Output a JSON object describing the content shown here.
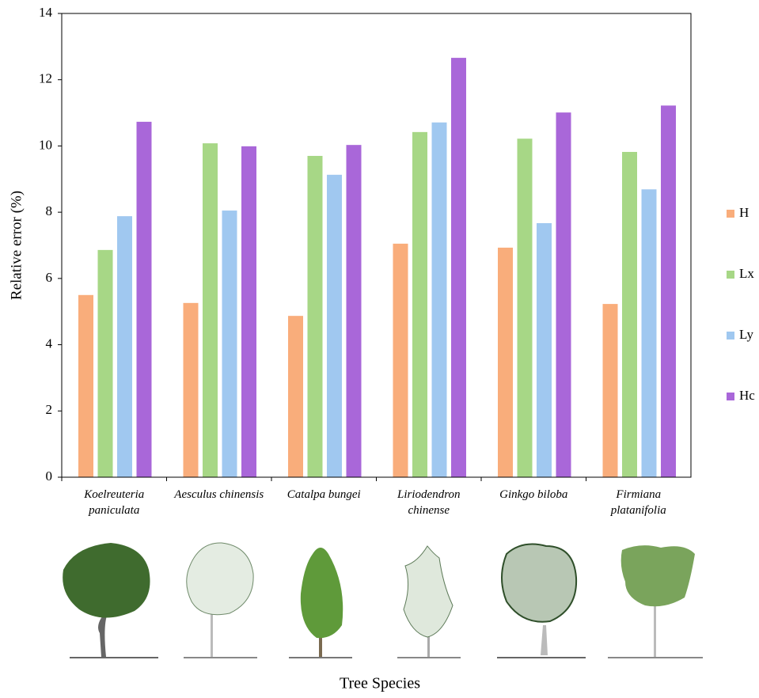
{
  "chart_data": {
    "type": "bar",
    "y_label": "Relative error (%)",
    "x_label": "Tree Species",
    "categories": [
      "Koelreuteria paniculata",
      "Aesculus chinensis",
      "Catalpa bungei",
      "Liriodendron chinense",
      "Ginkgo biloba",
      "Firmiana platanifolia"
    ],
    "series": [
      {
        "name": "H",
        "color": "#f9ad7b",
        "values": [
          5.5,
          5.26,
          4.87,
          7.05,
          6.93,
          5.23
        ]
      },
      {
        "name": "Lx",
        "color": "#a7d786",
        "values": [
          6.86,
          10.08,
          9.7,
          10.42,
          10.22,
          9.82
        ]
      },
      {
        "name": "Ly",
        "color": "#a0c8f0",
        "values": [
          7.88,
          8.05,
          9.13,
          10.71,
          7.67,
          8.69
        ]
      },
      {
        "name": "Hc",
        "color": "#a967d9",
        "values": [
          10.73,
          9.99,
          10.03,
          12.66,
          11.01,
          11.22
        ]
      }
    ],
    "ylim": [
      0,
      14
    ],
    "yticks": [
      0,
      2,
      4,
      6,
      8,
      10,
      12,
      14
    ]
  }
}
